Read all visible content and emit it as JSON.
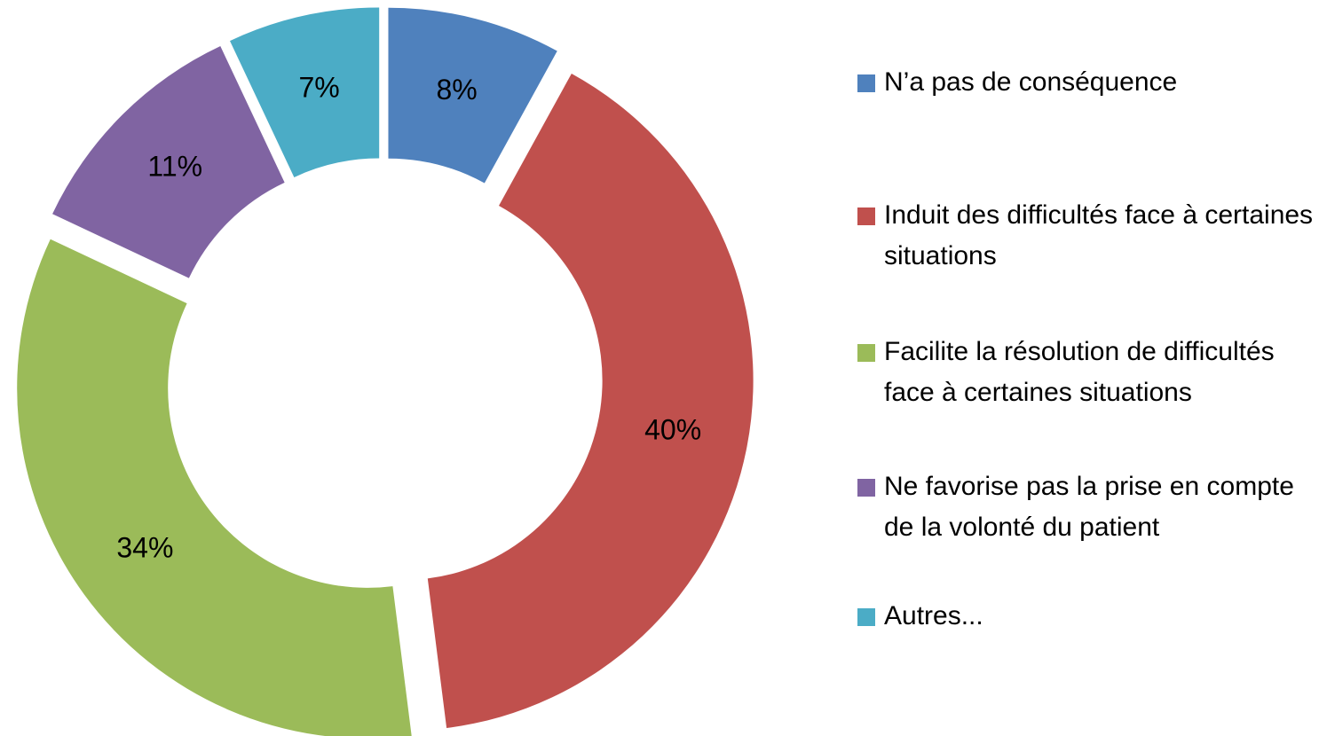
{
  "chart_data": {
    "type": "donut",
    "categories": [
      "N’a pas de conséquence",
      "Induit des difficultés face à certaines situations",
      "Facilite la résolution de difficultés face à certaines situations",
      "Ne favorise pas la prise en compte de la volonté du patient",
      "Autres..."
    ],
    "values": [
      8,
      40,
      34,
      11,
      7
    ],
    "value_labels": [
      "8%",
      "40%",
      "34%",
      "11%",
      "7%"
    ],
    "colors": [
      "#4f81bd",
      "#c0504d",
      "#9bbb59",
      "#8064a2",
      "#4bacc6"
    ],
    "legend": "right",
    "exploded": true
  }
}
